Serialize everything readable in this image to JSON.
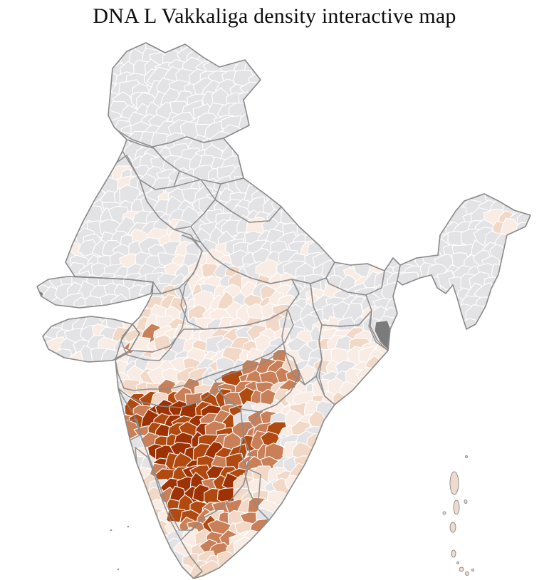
{
  "title": "DNA L Vakkaliga density interactive map",
  "map": {
    "description": "District-level choropleth of India showing DNA L Vakkaliga density; darkest shading concentrated over Karnataka and adjacent districts",
    "palette": {
      "no_data": "#e3e3e6",
      "very_low": "#f8ece4",
      "low": "#f2d8c6",
      "medium": "#c98058",
      "high": "#b04a10",
      "highest": "#9d3304",
      "special_na": "#7b7b7b",
      "district_border": "#ffffff",
      "state_border": "#8b8b8b",
      "island_fill": "#eedbce",
      "background": "#ffffff"
    },
    "density_levels": {
      "none": {
        "weights": [
          [
            "no_data",
            1.0
          ]
        ]
      },
      "sparse": {
        "weights": [
          [
            "no_data",
            0.8
          ],
          [
            "very_low",
            0.2
          ]
        ]
      },
      "pale": {
        "weights": [
          [
            "very_low",
            0.5
          ],
          [
            "low",
            0.28
          ],
          [
            "no_data",
            0.22
          ]
        ]
      },
      "low": {
        "weights": [
          [
            "low",
            0.6
          ],
          [
            "very_low",
            0.3
          ],
          [
            "medium",
            0.1
          ]
        ]
      },
      "medium": {
        "weights": [
          [
            "medium",
            0.58
          ],
          [
            "low",
            0.22
          ],
          [
            "high",
            0.2
          ]
        ]
      },
      "high": {
        "weights": [
          [
            "high",
            0.45
          ],
          [
            "medium",
            0.4
          ],
          [
            "highest",
            0.15
          ]
        ]
      },
      "core": {
        "weights": [
          [
            "highest",
            0.72
          ],
          [
            "high",
            0.28
          ]
        ]
      }
    },
    "regions": [
      {
        "id": "jammu-kashmir",
        "density": "none"
      },
      {
        "id": "himachal",
        "density": "none"
      },
      {
        "id": "punjab",
        "density": "none"
      },
      {
        "id": "uttarakhand",
        "density": "none"
      },
      {
        "id": "haryana",
        "density": "sparse"
      },
      {
        "id": "rajasthan",
        "density": "sparse"
      },
      {
        "id": "kutch",
        "density": "none"
      },
      {
        "id": "saurashtra",
        "density": "sparse"
      },
      {
        "id": "gujarat-east",
        "density": "low"
      },
      {
        "id": "up",
        "density": "sparse"
      },
      {
        "id": "mp",
        "density": "pale"
      },
      {
        "id": "bihar",
        "density": "sparse"
      },
      {
        "id": "jharkhand",
        "density": "sparse"
      },
      {
        "id": "west-bengal",
        "density": "sparse"
      },
      {
        "id": "northeast",
        "density": "none"
      },
      {
        "id": "upper-assam",
        "density": "low"
      },
      {
        "id": "chhattisgarh",
        "density": "sparse"
      },
      {
        "id": "odisha",
        "density": "pale"
      },
      {
        "id": "maharashtra",
        "density": "pale"
      },
      {
        "id": "south-maharashtra",
        "density": "medium"
      },
      {
        "id": "telangana",
        "density": "medium"
      },
      {
        "id": "andhra",
        "density": "pale"
      },
      {
        "id": "rayalaseema",
        "density": "medium"
      },
      {
        "id": "goa",
        "density": "medium"
      },
      {
        "id": "karnataka-outer",
        "density": "high"
      },
      {
        "id": "karnataka-core",
        "density": "core"
      },
      {
        "id": "kerala",
        "density": "pale"
      },
      {
        "id": "tamil-nadu",
        "density": "low"
      },
      {
        "id": "tn-west",
        "density": "medium"
      },
      {
        "id": "tn-south",
        "density": "medium"
      }
    ]
  }
}
